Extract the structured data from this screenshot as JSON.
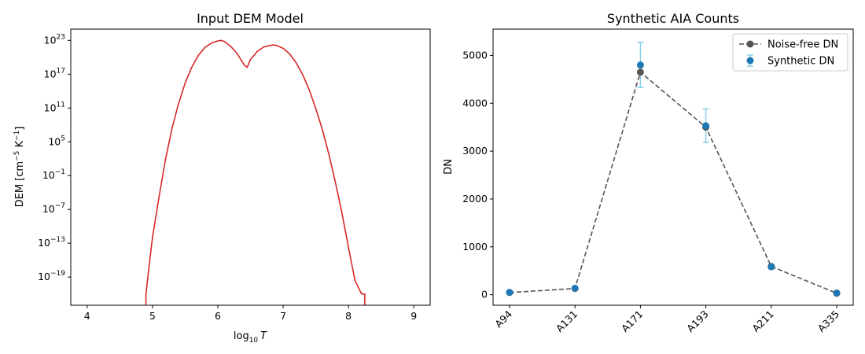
{
  "chart_data": [
    {
      "type": "line",
      "title": "Input DEM Model",
      "xlabel_base": "log",
      "xlabel_sub": "10",
      "xlabel_var": "T",
      "ylabel_parts": [
        "DEM [cm",
        "−5",
        " K",
        "−1",
        "]"
      ],
      "xlim": [
        3.75,
        9.25
      ],
      "ylim_log10": [
        -24,
        25
      ],
      "y_scale": "log",
      "xticks": [
        4,
        5,
        6,
        7,
        8,
        9
      ],
      "xtick_labels": [
        "4",
        "5",
        "6",
        "7",
        "8",
        "9"
      ],
      "yticks_log10": [
        23,
        17,
        11,
        5,
        -1,
        -7,
        -13,
        -19
      ],
      "ytick_labels": [
        "23",
        "17",
        "11",
        "5",
        "−1",
        "−7",
        "−13",
        "−19"
      ],
      "ytick_base": "10",
      "series": [
        {
          "color": "#d62728",
          "x": [
            4.9,
            4.9,
            4.95,
            5.0,
            5.1,
            5.2,
            5.3,
            5.4,
            5.5,
            5.6,
            5.7,
            5.8,
            5.9,
            6.0,
            6.05,
            6.1,
            6.2,
            6.3,
            6.4,
            6.45,
            6.5,
            6.6,
            6.7,
            6.8,
            6.85,
            6.9,
            7.0,
            7.1,
            7.2,
            7.3,
            7.4,
            7.5,
            7.6,
            7.7,
            7.8,
            7.9,
            8.0,
            8.1,
            8.2,
            8.25,
            8.25
          ],
          "log10_y": [
            -24,
            -22,
            -16.9,
            -12.0,
            -4.8,
            1.9,
            7.4,
            11.8,
            15.4,
            18.2,
            20.3,
            21.7,
            22.5,
            22.9,
            23.0,
            22.8,
            21.9,
            20.6,
            18.7,
            18.2,
            19.6,
            21.0,
            21.8,
            22.1,
            22.2,
            22.1,
            21.6,
            20.6,
            19.0,
            16.9,
            14.2,
            10.9,
            7.2,
            2.8,
            -2.2,
            -7.6,
            -13.7,
            -19.6,
            -22.0,
            -22.0,
            -24
          ]
        }
      ]
    },
    {
      "type": "line",
      "title": "Synthetic AIA Counts",
      "xlabel": "",
      "ylabel": "DN",
      "ylim": [
        -220,
        5550
      ],
      "yticks": [
        0,
        1000,
        2000,
        3000,
        4000,
        5000
      ],
      "categories": [
        "A94",
        "A131",
        "A171",
        "A193",
        "A211",
        "A335"
      ],
      "legend_placement": "upper-right",
      "series": [
        {
          "name": "Noise-free DN",
          "style": "dashed-line-with-markers",
          "color": "#555555",
          "values": [
            45,
            130,
            4650,
            3500,
            590,
            30
          ]
        },
        {
          "name": "Synthetic DN",
          "style": "errorbar-markers",
          "color": "#1f77b4",
          "errorbar_color": "#87ceeb",
          "values": [
            50,
            135,
            4800,
            3530,
            585,
            35
          ],
          "errors": [
            15,
            25,
            470,
            350,
            50,
            12
          ]
        }
      ]
    }
  ]
}
